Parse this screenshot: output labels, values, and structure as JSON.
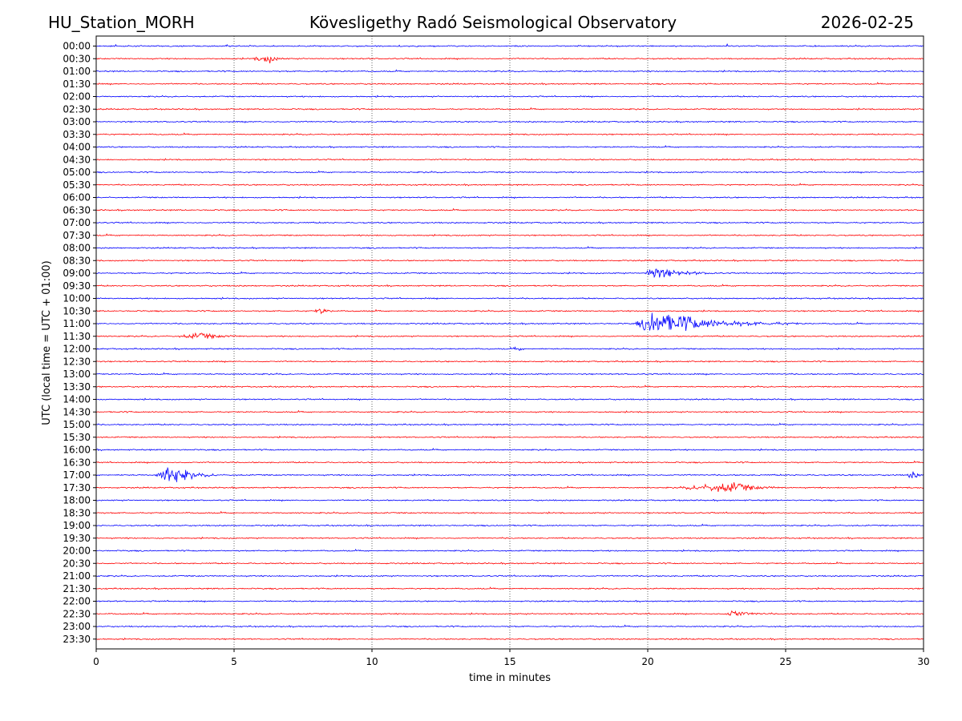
{
  "header": {
    "station": "HU_Station_MORH",
    "observatory": "Kövesligethy Radó Seismological Observatory",
    "date": "2026-02-25"
  },
  "chart_data": {
    "type": "line",
    "xlabel": "time in minutes",
    "ylabel": "UTC (local time = UTC + 01:00)",
    "xlim": [
      0,
      30
    ],
    "xticks": [
      "0",
      "5",
      "10",
      "15",
      "20",
      "25",
      "30"
    ],
    "grid": "vertical dotted at x = 5, 10, 15, 20, 25",
    "colors": {
      "even_row": "#0000ff",
      "odd_row": "#ff0000",
      "grid": "#000000"
    },
    "rows": [
      "00:00",
      "00:30",
      "01:00",
      "01:30",
      "02:00",
      "02:30",
      "03:00",
      "03:30",
      "04:00",
      "04:30",
      "05:00",
      "05:30",
      "06:00",
      "06:30",
      "07:00",
      "07:30",
      "08:00",
      "08:30",
      "09:00",
      "09:30",
      "10:00",
      "10:30",
      "11:00",
      "11:30",
      "12:00",
      "12:30",
      "13:00",
      "13:30",
      "14:00",
      "14:30",
      "15:00",
      "15:30",
      "16:00",
      "16:30",
      "17:00",
      "17:30",
      "18:00",
      "18:30",
      "19:00",
      "19:30",
      "20:00",
      "20:30",
      "21:00",
      "21:30",
      "22:00",
      "22:30",
      "23:00",
      "23:30"
    ],
    "events": [
      {
        "row": "00:30",
        "start_min": 5.6,
        "peak_min": 6.3,
        "end_min": 7.0,
        "amplitude": 0.3
      },
      {
        "row": "09:00",
        "start_min": 19.9,
        "peak_min": 20.2,
        "end_min": 22.5,
        "amplitude": 0.6
      },
      {
        "row": "10:30",
        "start_min": 7.9,
        "peak_min": 8.1,
        "end_min": 8.8,
        "amplitude": 0.25
      },
      {
        "row": "11:00",
        "start_min": 19.5,
        "peak_min": 20.3,
        "end_min": 25.5,
        "amplitude": 1.0
      },
      {
        "row": "11:30",
        "start_min": 2.9,
        "peak_min": 3.8,
        "end_min": 5.5,
        "amplitude": 0.25
      },
      {
        "row": "12:00",
        "start_min": 15.1,
        "peak_min": 15.3,
        "end_min": 15.6,
        "amplitude": 0.2
      },
      {
        "row": "17:00",
        "start_min": 2.1,
        "peak_min": 2.75,
        "end_min": 4.5,
        "amplitude": 0.8
      },
      {
        "row": "17:00",
        "start_min": 29.3,
        "peak_min": 29.7,
        "end_min": 30.0,
        "amplitude": 0.3
      },
      {
        "row": "17:30",
        "start_min": 21.0,
        "peak_min": 23.2,
        "end_min": 25.0,
        "amplitude": 0.4
      },
      {
        "row": "22:30",
        "start_min": 22.8,
        "peak_min": 23.0,
        "end_min": 24.5,
        "amplitude": 0.35
      }
    ]
  }
}
